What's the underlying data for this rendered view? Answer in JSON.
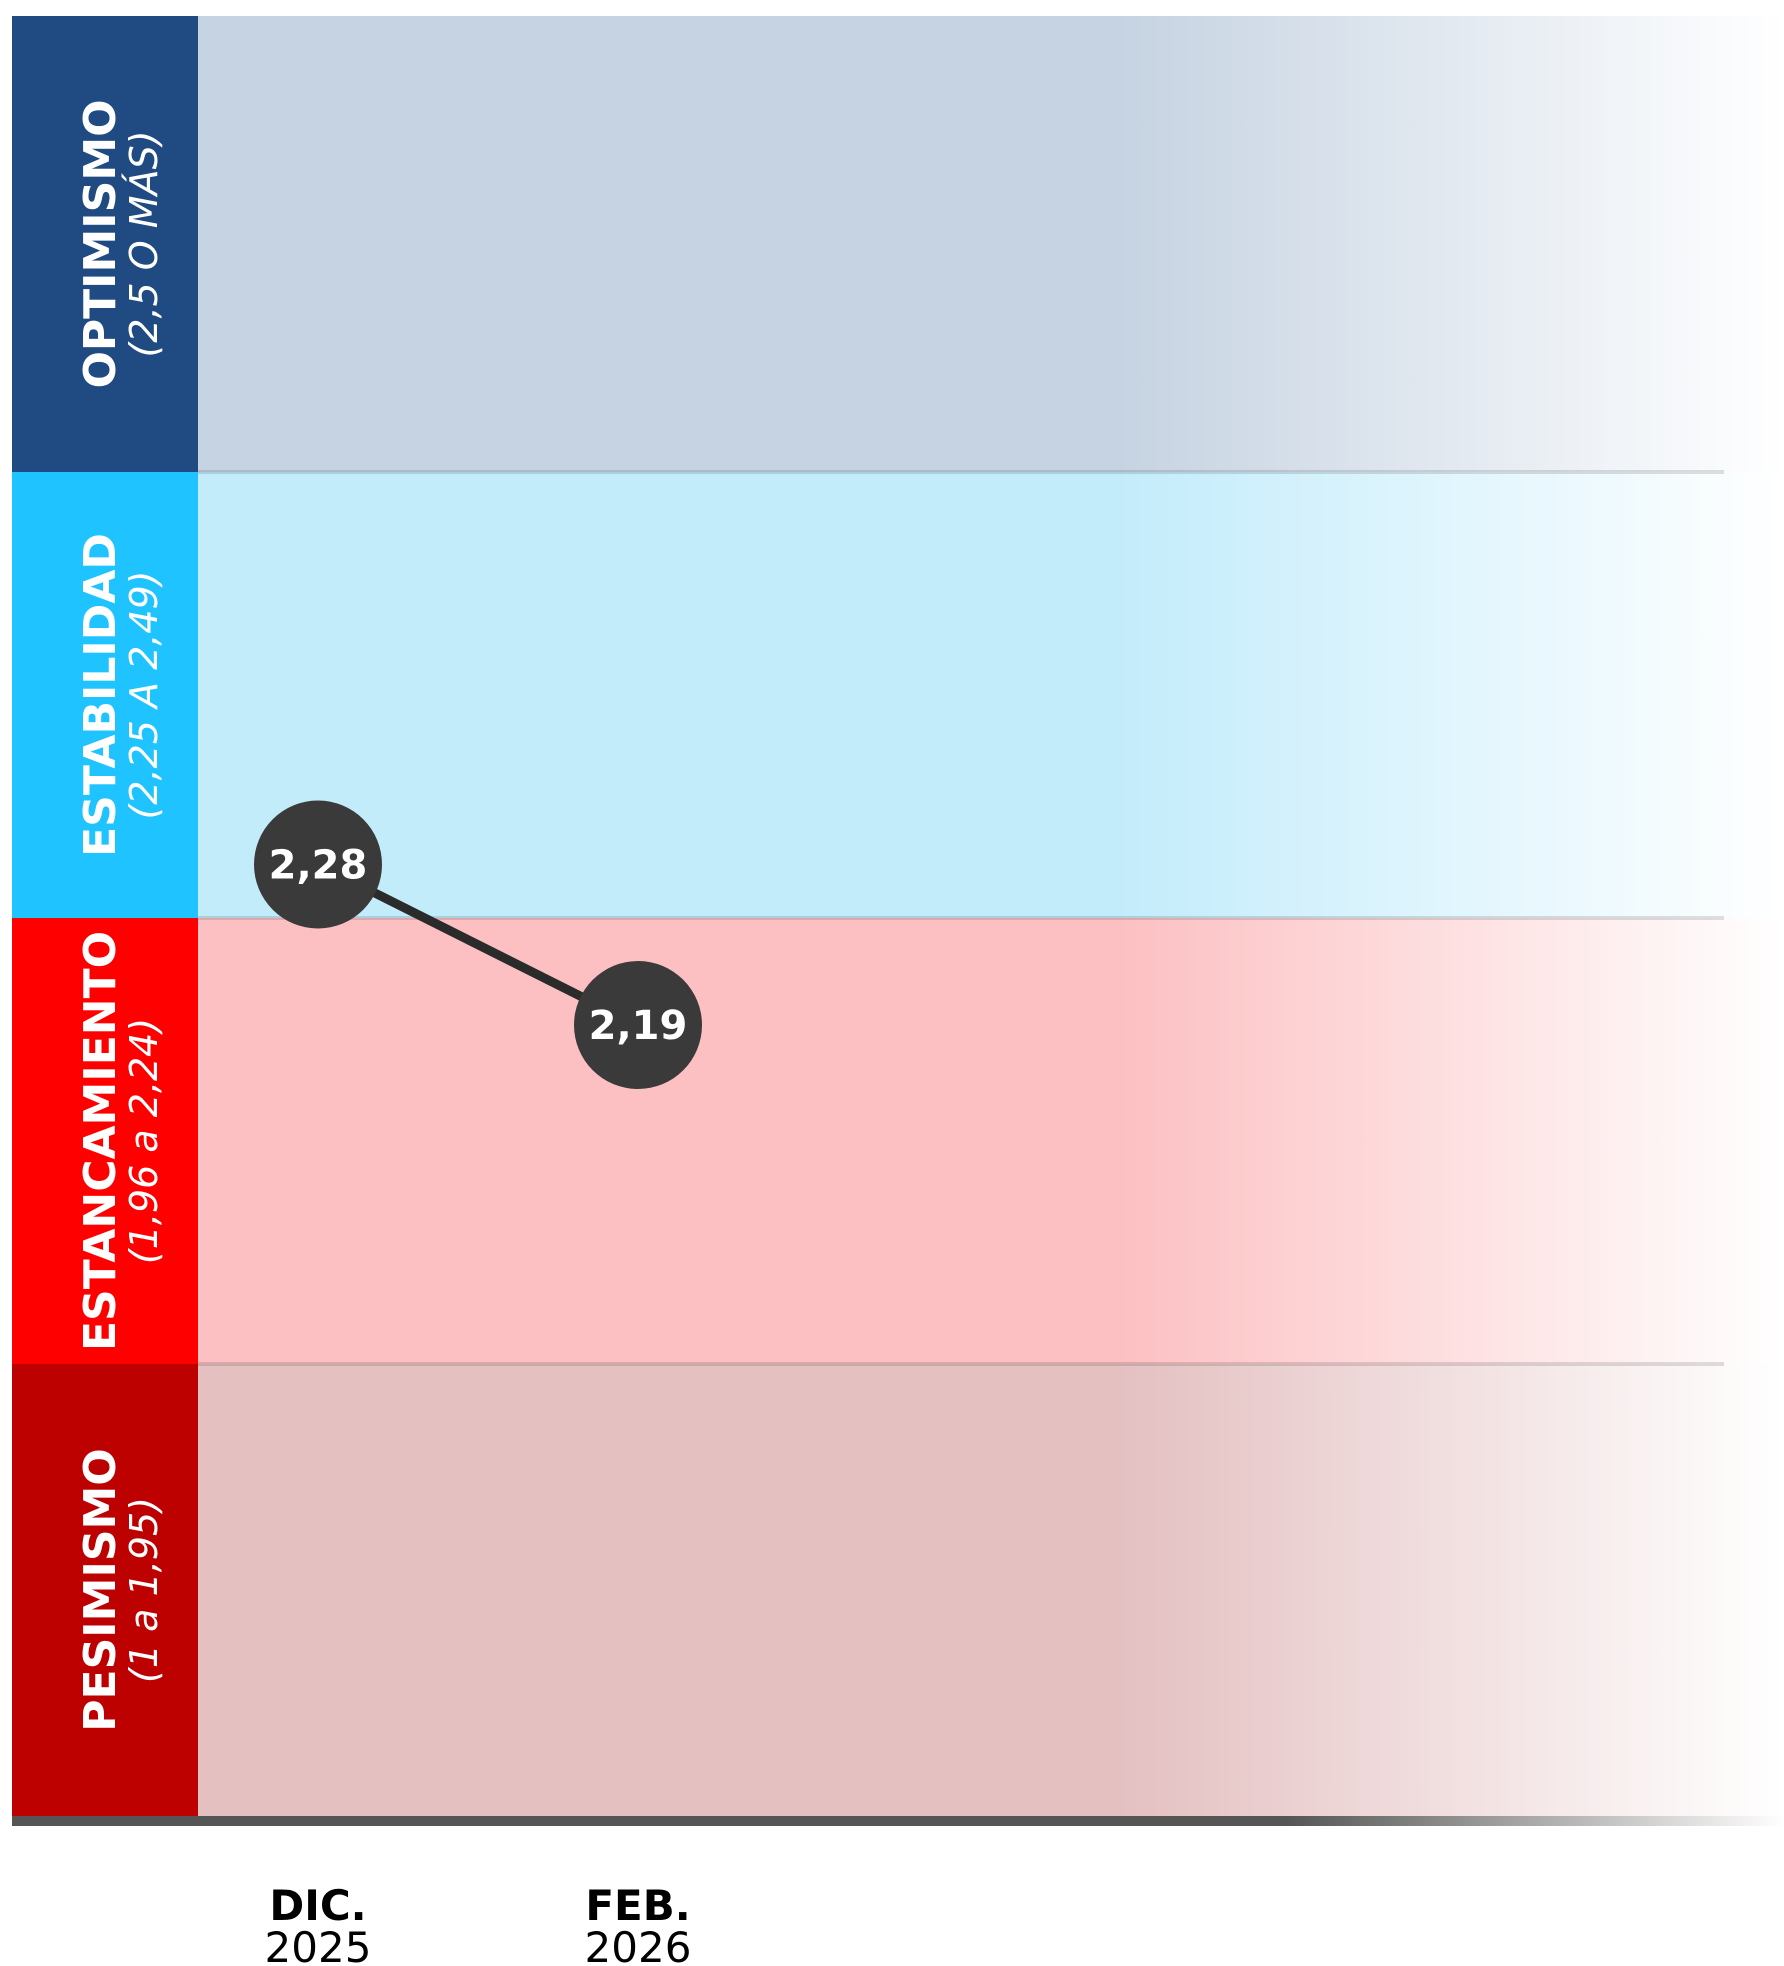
{
  "chart_data": {
    "type": "line",
    "bands": [
      {
        "name": "OPTIMISMO",
        "range_label": "(2,5 O MÁS)",
        "color": "#1f4a82",
        "tint": "#c6d3e2"
      },
      {
        "name": "ESTABILIDAD",
        "range_label": "(2,25 A 2,49)",
        "color": "#1ec3ff",
        "tint": "#c3ecfb"
      },
      {
        "name": "ESTANCAMIENTO",
        "range_label": "(1,96 a 2,24)",
        "color": "#ff0000",
        "tint": "#fcc0c2"
      },
      {
        "name": "PESIMISMO",
        "range_label": "(1 a 1,95)",
        "color": "#bd0000",
        "tint": "#e4c0c1"
      }
    ],
    "categories": [
      {
        "month": "DIC.",
        "year": "2025"
      },
      {
        "month": "FEB.",
        "year": "2026"
      }
    ],
    "values": [
      2.28,
      2.19
    ],
    "value_labels": [
      "2,28",
      "2,19"
    ],
    "line_color": "#2b2b2b",
    "marker_color": "#3a3a3a"
  }
}
